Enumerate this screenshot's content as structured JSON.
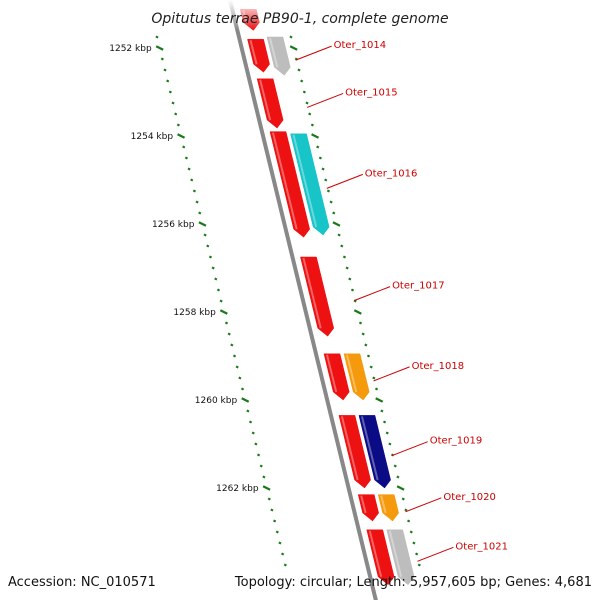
{
  "title": "Opitutus terrae PB90-1, complete genome",
  "footer": {
    "accession": "Accession: NC_010571",
    "summary": "Topology: circular; Length: 5,957,605 bp; Genes: 4,681"
  },
  "colors": {
    "backbone": "#888888",
    "tick": "#1a7a1a",
    "label": "#cc0000",
    "gene_red": "#ee1111",
    "gene_gray": "#bdbdbd",
    "gene_cyan": "#17c4c8",
    "gene_orange": "#f59a0c",
    "gene_navy": "#0b0b86"
  },
  "scale": {
    "marks": [
      {
        "label": "1252 kbp",
        "kbp": 1252
      },
      {
        "label": "1254 kbp",
        "kbp": 1254
      },
      {
        "label": "1256 kbp",
        "kbp": 1256
      },
      {
        "label": "1258 kbp",
        "kbp": 1258
      },
      {
        "label": "1260 kbp",
        "kbp": 1260
      },
      {
        "label": "1262 kbp",
        "kbp": 1262
      }
    ]
  },
  "genes": [
    {
      "strand": "inner",
      "start": 1251.12,
      "end": 1251.6,
      "color": "gene_red",
      "label": ""
    },
    {
      "strand": "inner",
      "start": 1251.8,
      "end": 1252.55,
      "color": "gene_red",
      "label": ""
    },
    {
      "strand": "outer",
      "start": 1251.75,
      "end": 1252.62,
      "color": "gene_gray",
      "label": "Oter_1014"
    },
    {
      "strand": "inner",
      "start": 1252.7,
      "end": 1253.82,
      "color": "gene_red",
      "label": "Oter_1015"
    },
    {
      "strand": "inner",
      "start": 1253.9,
      "end": 1256.3,
      "color": "gene_red",
      "label": ""
    },
    {
      "strand": "outer",
      "start": 1253.95,
      "end": 1256.25,
      "color": "gene_cyan",
      "label": "Oter_1016"
    },
    {
      "strand": "inner",
      "start": 1256.75,
      "end": 1258.55,
      "color": "gene_red",
      "label": "Oter_1017"
    },
    {
      "strand": "inner",
      "start": 1258.95,
      "end": 1260.0,
      "color": "gene_red",
      "label": ""
    },
    {
      "strand": "outer",
      "start": 1258.95,
      "end": 1260.0,
      "color": "gene_orange",
      "label": "Oter_1018"
    },
    {
      "strand": "inner",
      "start": 1260.35,
      "end": 1262.0,
      "color": "gene_red",
      "label": ""
    },
    {
      "strand": "outer",
      "start": 1260.35,
      "end": 1262.0,
      "color": "gene_navy",
      "label": "Oter_1019"
    },
    {
      "strand": "inner",
      "start": 1262.15,
      "end": 1262.75,
      "color": "gene_red",
      "label": ""
    },
    {
      "strand": "outer",
      "start": 1262.15,
      "end": 1262.75,
      "color": "gene_orange",
      "label": "Oter_1020"
    },
    {
      "strand": "inner",
      "start": 1262.95,
      "end": 1264.2,
      "color": "gene_red",
      "label": ""
    },
    {
      "strand": "outer",
      "start": 1262.95,
      "end": 1264.2,
      "color": "gene_gray",
      "label": "Oter_1021"
    }
  ],
  "label_positions": [
    "Oter_1014",
    "Oter_1015",
    "Oter_1016",
    "Oter_1017",
    "Oter_1018",
    "Oter_1019",
    "Oter_1020",
    "Oter_1021"
  ]
}
